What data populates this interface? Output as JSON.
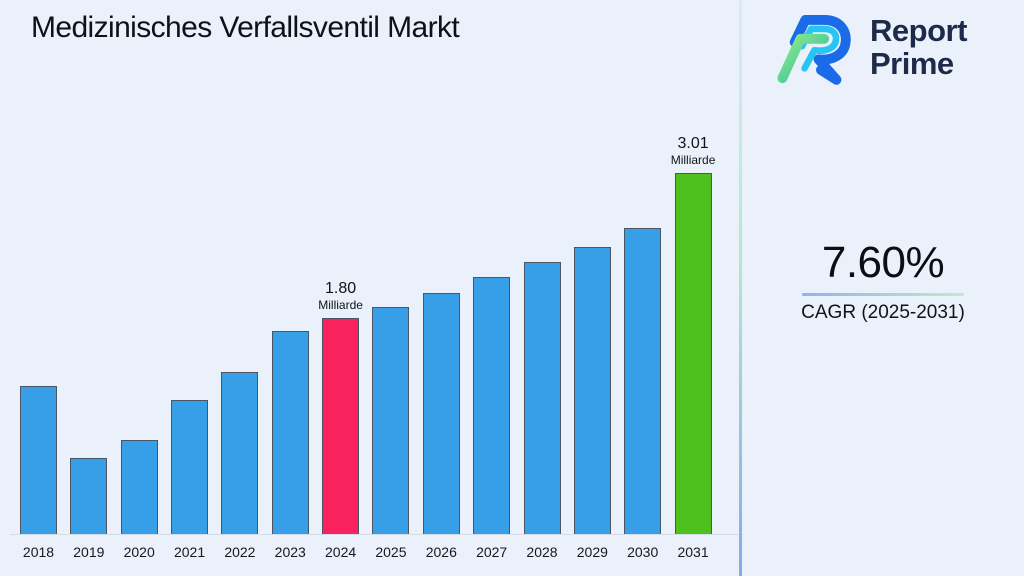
{
  "header": {
    "title": "Medizinisches Verfallsventil Markt"
  },
  "logo": {
    "line1": "Report",
    "line2": "Prime",
    "icon": "report-prime-r-mark"
  },
  "stat": {
    "value": "7.60%",
    "label": "CAGR (2025-2031)"
  },
  "colors": {
    "background": "#EAF1FB",
    "bar_blue": "#379FE8",
    "bar_pink": "#F9215E",
    "bar_green": "#4FC11E",
    "bar_border": "#4A5664",
    "navy_text": "#1E2A4A",
    "underline_blue": "#8FB3F0",
    "underline_green": "#B9EFC6",
    "axis_line": "#D7DDE8"
  },
  "chart_data": {
    "type": "bar",
    "title": "Medizinisches Verfallsventil Markt",
    "unit": "Milliarde",
    "baseline": 0,
    "grid": false,
    "y_axis_shown": false,
    "categories": [
      "2018",
      "2019",
      "2020",
      "2021",
      "2022",
      "2023",
      "2024",
      "2025",
      "2026",
      "2027",
      "2028",
      "2029",
      "2030",
      "2031"
    ],
    "values": [
      1.23,
      0.63,
      0.78,
      1.12,
      1.35,
      1.69,
      1.8,
      1.89,
      2.01,
      2.14,
      2.27,
      2.39,
      2.55,
      3.01
    ],
    "bar_color_default": "#379FE8",
    "highlights": [
      {
        "category": "2024",
        "color": "#F9215E"
      },
      {
        "category": "2031",
        "color": "#4FC11E"
      }
    ],
    "annotations": [
      {
        "category": "2024",
        "value_label": "1.80",
        "unit_label": "Milliarde"
      },
      {
        "category": "2031",
        "value_label": "3.01",
        "unit_label": "Milliarde"
      }
    ]
  }
}
